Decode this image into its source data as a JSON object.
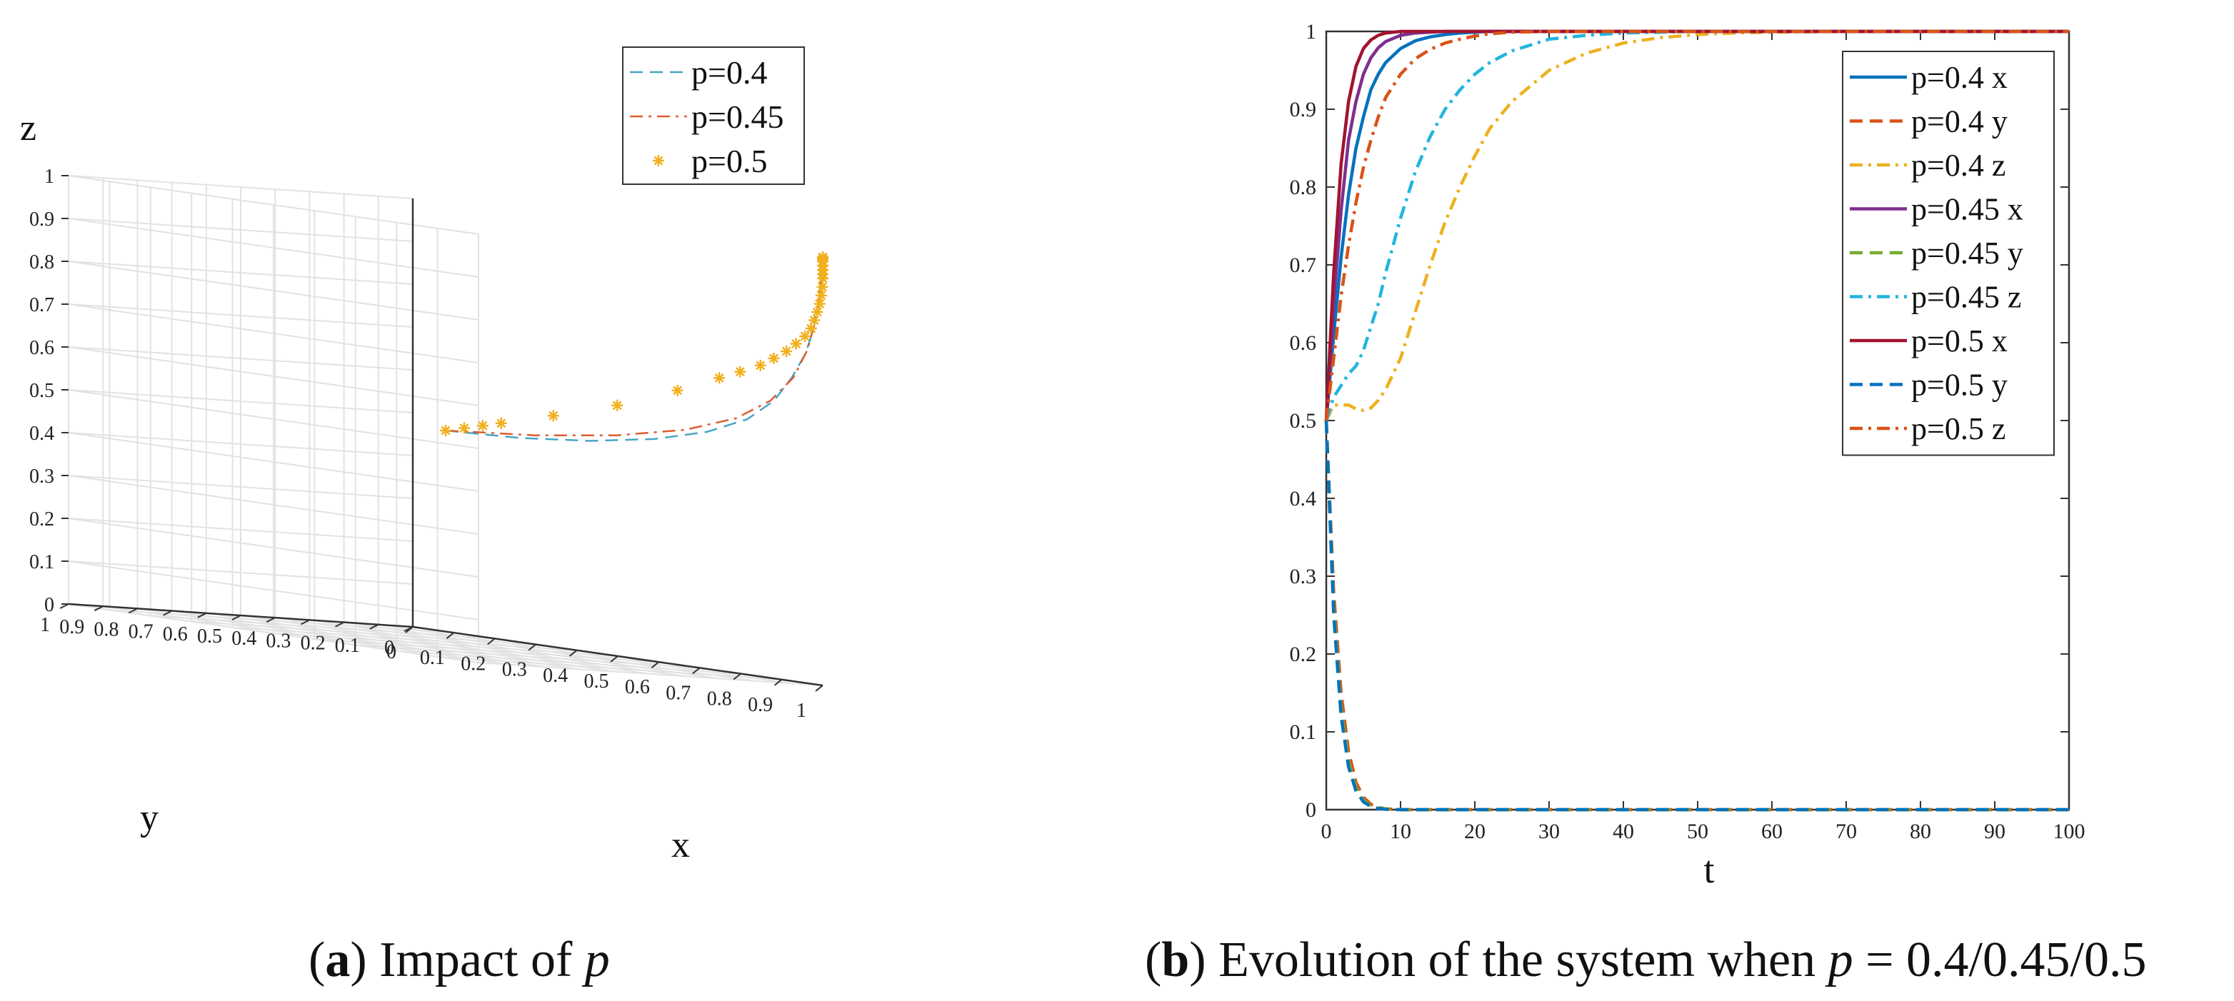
{
  "chart_data": [
    {
      "type": "3d-line",
      "caption": {
        "label": "a",
        "text": "Impact of",
        "var": "p"
      },
      "xlabel": "x",
      "ylabel": "y",
      "zlabel": "z",
      "xlim": [
        0,
        1
      ],
      "ylim": [
        0,
        1
      ],
      "zlim": [
        0,
        1
      ],
      "ticks": {
        "x": [
          "0",
          "0.1",
          "0.2",
          "0.3",
          "0.4",
          "0.5",
          "0.6",
          "0.7",
          "0.8",
          "0.9",
          "1"
        ],
        "y": [
          "0",
          "0.1",
          "0.2",
          "0.3",
          "0.4",
          "0.5",
          "0.6",
          "0.7",
          "0.8",
          "0.9",
          "1"
        ],
        "z": [
          "0",
          "0.1",
          "0.2",
          "0.3",
          "0.4",
          "0.5",
          "0.6",
          "0.7",
          "0.8",
          "0.9",
          "1"
        ]
      },
      "grid": true,
      "legend": "top-right",
      "series": [
        {
          "name": "p=0.4",
          "style": "dashed",
          "color": "#4aa3c4",
          "x": [
            0.5,
            0.58,
            0.66,
            0.74,
            0.81,
            0.87,
            0.91,
            0.94,
            0.965,
            0.98,
            0.99,
            0.996,
            1.0
          ],
          "y": [
            0.5,
            0.38,
            0.27,
            0.18,
            0.11,
            0.065,
            0.035,
            0.018,
            0.008,
            0.003,
            0.001,
            0.0,
            0.0
          ],
          "z": [
            0.5,
            0.5,
            0.51,
            0.53,
            0.56,
            0.6,
            0.65,
            0.71,
            0.77,
            0.83,
            0.89,
            0.95,
            1.0
          ]
        },
        {
          "name": "p=0.45",
          "style": "dashdot",
          "color": "#d95f30",
          "x": [
            0.5,
            0.6,
            0.7,
            0.79,
            0.86,
            0.91,
            0.945,
            0.97,
            0.985,
            0.994,
            1.0
          ],
          "y": [
            0.5,
            0.36,
            0.24,
            0.15,
            0.085,
            0.045,
            0.02,
            0.008,
            0.003,
            0.001,
            0.0
          ],
          "z": [
            0.5,
            0.51,
            0.53,
            0.56,
            0.6,
            0.65,
            0.71,
            0.78,
            0.85,
            0.92,
            1.0
          ]
        },
        {
          "name": "p=0.5",
          "style": "markers",
          "marker": "*",
          "color": "#f2b01e",
          "x": [
            0.5,
            0.52,
            0.54,
            0.56,
            0.62,
            0.7,
            0.78,
            0.84,
            0.87,
            0.9,
            0.92,
            0.94,
            0.955,
            0.97,
            0.98,
            0.985,
            0.99,
            0.994,
            0.997,
            0.999,
            1.0,
            1.0,
            1.0,
            1.0,
            1.0,
            1.0,
            1.0,
            1.0
          ],
          "y": [
            0.5,
            0.47,
            0.44,
            0.41,
            0.33,
            0.24,
            0.16,
            0.11,
            0.085,
            0.062,
            0.047,
            0.034,
            0.024,
            0.016,
            0.01,
            0.007,
            0.004,
            0.002,
            0.001,
            0.0,
            0.0,
            0.0,
            0.0,
            0.0,
            0.0,
            0.0,
            0.0,
            0.0
          ],
          "z": [
            0.5,
            0.51,
            0.52,
            0.53,
            0.56,
            0.6,
            0.65,
            0.69,
            0.71,
            0.73,
            0.75,
            0.77,
            0.79,
            0.81,
            0.83,
            0.85,
            0.87,
            0.89,
            0.91,
            0.93,
            0.95,
            0.96,
            0.97,
            0.98,
            0.99,
            0.995,
            0.998,
            1.0
          ]
        }
      ]
    },
    {
      "type": "line",
      "caption": {
        "label": "b",
        "text": "Evolution of the system when",
        "var": "p",
        "tail": "= 0.4/0.45/0.5"
      },
      "xlabel": "t",
      "ylabel": "",
      "xlim": [
        0,
        100
      ],
      "ylim": [
        0,
        1
      ],
      "xticks": [
        "0",
        "10",
        "20",
        "30",
        "40",
        "50",
        "60",
        "70",
        "80",
        "90",
        "100"
      ],
      "yticks": [
        "0",
        "0.1",
        "0.2",
        "0.3",
        "0.4",
        "0.5",
        "0.6",
        "0.7",
        "0.8",
        "0.9",
        "1"
      ],
      "grid": false,
      "legend": "top-right",
      "x": [
        0,
        1,
        2,
        3,
        4,
        5,
        6,
        7,
        8,
        10,
        12,
        14,
        16,
        18,
        20,
        22,
        25,
        30,
        35,
        40,
        45,
        50,
        55,
        60,
        70,
        80,
        90,
        100
      ],
      "series": [
        {
          "name": "p=0.4 x",
          "style": "solid",
          "color": "#0072bd",
          "values": [
            0.5,
            0.61,
            0.71,
            0.79,
            0.85,
            0.89,
            0.925,
            0.945,
            0.96,
            0.978,
            0.988,
            0.993,
            0.996,
            0.998,
            0.999,
            1,
            1,
            1,
            1,
            1,
            1,
            1,
            1,
            1,
            1,
            1,
            1,
            1
          ]
        },
        {
          "name": "p=0.4 y",
          "style": "dashed",
          "color": "#d95319",
          "values": [
            0.5,
            0.28,
            0.15,
            0.075,
            0.035,
            0.016,
            0.007,
            0.003,
            0.001,
            0,
            0,
            0,
            0,
            0,
            0,
            0,
            0,
            0,
            0,
            0,
            0,
            0,
            0,
            0,
            0,
            0,
            0,
            0
          ]
        },
        {
          "name": "p=0.4 z",
          "style": "dashdot",
          "color": "#edb120",
          "values": [
            0.5,
            0.52,
            0.52,
            0.52,
            0.515,
            0.513,
            0.516,
            0.526,
            0.54,
            0.58,
            0.64,
            0.7,
            0.755,
            0.8,
            0.84,
            0.875,
            0.91,
            0.95,
            0.972,
            0.985,
            0.992,
            0.996,
            0.998,
            0.999,
            1,
            1,
            1,
            1
          ]
        },
        {
          "name": "p=0.45 x",
          "style": "solid",
          "color": "#7e2f8e",
          "values": [
            0.5,
            0.65,
            0.77,
            0.86,
            0.91,
            0.945,
            0.966,
            0.979,
            0.987,
            0.995,
            0.998,
            0.999,
            1,
            1,
            1,
            1,
            1,
            1,
            1,
            1,
            1,
            1,
            1,
            1,
            1,
            1,
            1,
            1
          ]
        },
        {
          "name": "p=0.45 y",
          "style": "dashed",
          "color": "#77ac30",
          "values": [
            0.5,
            0.26,
            0.13,
            0.062,
            0.028,
            0.012,
            0.005,
            0.002,
            0.001,
            0,
            0,
            0,
            0,
            0,
            0,
            0,
            0,
            0,
            0,
            0,
            0,
            0,
            0,
            0,
            0,
            0,
            0,
            0
          ]
        },
        {
          "name": "p=0.45 z",
          "style": "dashdot",
          "color": "#22b5e0",
          "values": [
            0.5,
            0.53,
            0.545,
            0.56,
            0.57,
            0.59,
            0.62,
            0.65,
            0.69,
            0.76,
            0.82,
            0.865,
            0.9,
            0.925,
            0.945,
            0.96,
            0.975,
            0.99,
            0.995,
            0.998,
            0.999,
            1,
            1,
            1,
            1,
            1,
            1,
            1
          ]
        },
        {
          "name": "p=0.5 x",
          "style": "solid",
          "color": "#a2142f",
          "values": [
            0.5,
            0.69,
            0.83,
            0.91,
            0.955,
            0.978,
            0.989,
            0.995,
            0.998,
            1,
            1,
            1,
            1,
            1,
            1,
            1,
            1,
            1,
            1,
            1,
            1,
            1,
            1,
            1,
            1,
            1,
            1,
            1
          ]
        },
        {
          "name": "p=0.5 y",
          "style": "dashed",
          "color": "#0072bd",
          "values": [
            0.5,
            0.25,
            0.12,
            0.055,
            0.024,
            0.01,
            0.004,
            0.0015,
            0.0005,
            0,
            0,
            0,
            0,
            0,
            0,
            0,
            0,
            0,
            0,
            0,
            0,
            0,
            0,
            0,
            0,
            0,
            0,
            0
          ]
        },
        {
          "name": "p=0.5 z",
          "style": "dashdot",
          "color": "#d95319",
          "values": [
            0.5,
            0.58,
            0.66,
            0.725,
            0.78,
            0.825,
            0.86,
            0.89,
            0.915,
            0.945,
            0.965,
            0.977,
            0.985,
            0.99,
            0.994,
            0.997,
            0.999,
            1,
            1,
            1,
            1,
            1,
            1,
            1,
            1,
            1,
            1,
            1
          ]
        }
      ]
    }
  ]
}
